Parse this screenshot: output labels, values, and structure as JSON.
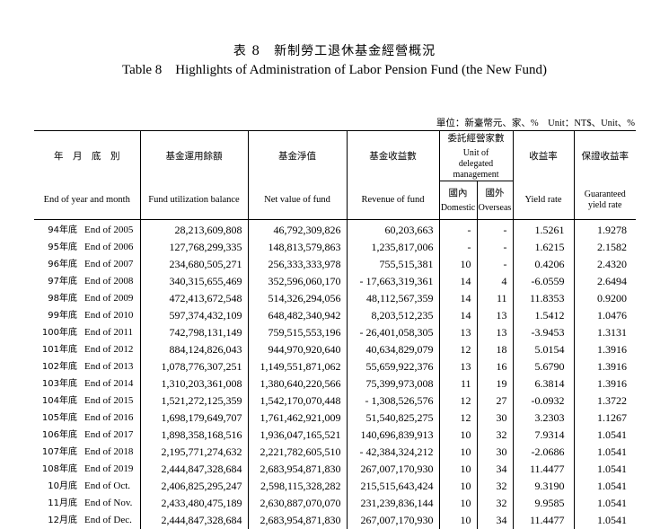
{
  "title_zh": "表 8　新制勞工退休基金經營概況",
  "title_en": "Table 8　Highlights of Administration of Labor Pension Fund (the New Fund)",
  "unit": "單位：新臺幣元、家、%　Unit：NT$、Unit、%",
  "headers": {
    "period_zh": "年　月　底　別",
    "period_en": "End of year and month",
    "balance_zh": "基金運用餘額",
    "balance_en": "Fund utilization balance",
    "net_zh": "基金淨值",
    "net_en": "Net value of fund",
    "revenue_zh": "基金收益數",
    "revenue_en": "Revenue of fund",
    "delegated_zh": "委託經營家數",
    "delegated_en": "Unit of delegated management",
    "domestic_zh": "國內",
    "domestic_en": "Domestic",
    "overseas_zh": "國外",
    "overseas_en": "Overseas",
    "yield_zh": "收益率",
    "yield_en": "Yield rate",
    "guaranteed_zh": "保證收益率",
    "guaranteed_en": "Guaranteed yield rate"
  },
  "rows": [
    {
      "zh": "94年底",
      "en": "End of 2005",
      "balance": "28,213,609,808",
      "net": "46,792,309,826",
      "revenue": "60,203,663",
      "domestic": "-",
      "overseas": "-",
      "yield": "1.5261",
      "guaranteed": "1.9278"
    },
    {
      "zh": "95年底",
      "en": "End of 2006",
      "balance": "127,768,299,335",
      "net": "148,813,579,863",
      "revenue": "1,235,817,006",
      "domestic": "-",
      "overseas": "-",
      "yield": "1.6215",
      "guaranteed": "2.1582"
    },
    {
      "zh": "96年底",
      "en": "End of 2007",
      "balance": "234,680,505,271",
      "net": "256,333,333,978",
      "revenue": "755,515,381",
      "domestic": "10",
      "overseas": "-",
      "yield": "0.4206",
      "guaranteed": "2.4320"
    },
    {
      "zh": "97年底",
      "en": "End of 2008",
      "balance": "340,315,655,469",
      "net": "352,596,060,170",
      "revenue": "- 17,663,319,361",
      "domestic": "14",
      "overseas": "4",
      "yield": "-6.0559",
      "guaranteed": "2.6494"
    },
    {
      "zh": "98年底",
      "en": "End of 2009",
      "balance": "472,413,672,548",
      "net": "514,326,294,056",
      "revenue": "48,112,567,359",
      "domestic": "14",
      "overseas": "11",
      "yield": "11.8353",
      "guaranteed": "0.9200"
    },
    {
      "zh": "99年底",
      "en": "End of 2010",
      "balance": "597,374,432,109",
      "net": "648,482,340,942",
      "revenue": "8,203,512,235",
      "domestic": "14",
      "overseas": "13",
      "yield": "1.5412",
      "guaranteed": "1.0476"
    },
    {
      "zh": "100年底",
      "en": "End of 2011",
      "balance": "742,798,131,149",
      "net": "759,515,553,196",
      "revenue": "- 26,401,058,305",
      "domestic": "13",
      "overseas": "13",
      "yield": "-3.9453",
      "guaranteed": "1.3131"
    },
    {
      "zh": "101年底",
      "en": "End of 2012",
      "balance": "884,124,826,043",
      "net": "944,970,920,640",
      "revenue": "40,634,829,079",
      "domestic": "12",
      "overseas": "18",
      "yield": "5.0154",
      "guaranteed": "1.3916"
    },
    {
      "zh": "102年底",
      "en": "End of 2013",
      "balance": "1,078,776,307,251",
      "net": "1,149,551,871,062",
      "revenue": "55,659,922,376",
      "domestic": "13",
      "overseas": "16",
      "yield": "5.6790",
      "guaranteed": "1.3916"
    },
    {
      "zh": "103年底",
      "en": "End of 2014",
      "balance": "1,310,203,361,008",
      "net": "1,380,640,220,566",
      "revenue": "75,399,973,008",
      "domestic": "11",
      "overseas": "19",
      "yield": "6.3814",
      "guaranteed": "1.3916"
    },
    {
      "zh": "104年底",
      "en": "End of 2015",
      "balance": "1,521,272,125,359",
      "net": "1,542,170,070,448",
      "revenue": "- 1,308,526,576",
      "domestic": "12",
      "overseas": "27",
      "yield": "-0.0932",
      "guaranteed": "1.3722"
    },
    {
      "zh": "105年底",
      "en": "End of 2016",
      "balance": "1,698,179,649,707",
      "net": "1,761,462,921,009",
      "revenue": "51,540,825,275",
      "domestic": "12",
      "overseas": "30",
      "yield": "3.2303",
      "guaranteed": "1.1267"
    },
    {
      "zh": "106年底",
      "en": "End of 2017",
      "balance": "1,898,358,168,516",
      "net": "1,936,047,165,521",
      "revenue": "140,696,839,913",
      "domestic": "10",
      "overseas": "32",
      "yield": "7.9314",
      "guaranteed": "1.0541"
    },
    {
      "zh": "107年底",
      "en": "End of 2018",
      "balance": "2,195,771,274,632",
      "net": "2,221,782,605,510",
      "revenue": "- 42,384,324,212",
      "domestic": "10",
      "overseas": "30",
      "yield": "-2.0686",
      "guaranteed": "1.0541"
    },
    {
      "zh": "108年底",
      "en": "End of 2019",
      "balance": "2,444,847,328,684",
      "net": "2,683,954,871,830",
      "revenue": "267,007,170,930",
      "domestic": "10",
      "overseas": "34",
      "yield": "11.4477",
      "guaranteed": "1.0541"
    },
    {
      "zh": "10月底",
      "en": "End of Oct.",
      "balance": "2,406,825,295,247",
      "net": "2,598,115,328,282",
      "revenue": "215,515,643,424",
      "domestic": "10",
      "overseas": "32",
      "yield": "9.3190",
      "guaranteed": "1.0541"
    },
    {
      "zh": "11月底",
      "en": "End of Nov.",
      "balance": "2,433,480,475,189",
      "net": "2,630,887,070,070",
      "revenue": "231,239,836,144",
      "domestic": "10",
      "overseas": "32",
      "yield": "9.9585",
      "guaranteed": "1.0541"
    },
    {
      "zh": "12月底",
      "en": "End of Dec.",
      "balance": "2,444,847,328,684",
      "net": "2,683,954,871,830",
      "revenue": "267,007,170,930",
      "domestic": "10",
      "overseas": "34",
      "yield": "11.4477",
      "guaranteed": "1.0541"
    }
  ]
}
